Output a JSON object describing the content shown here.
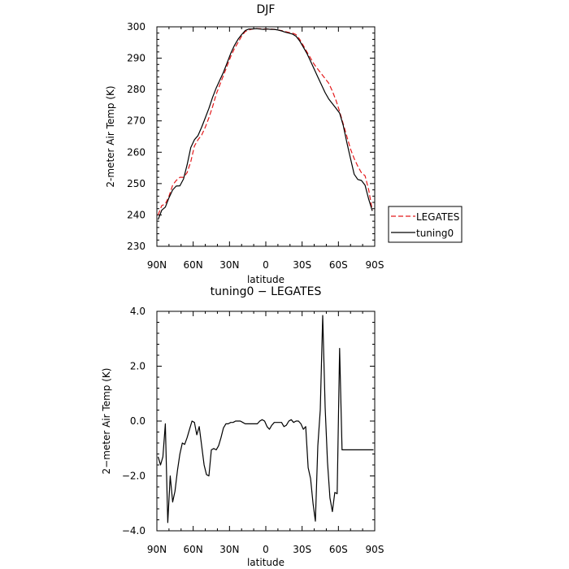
{
  "chart_data": [
    {
      "type": "line",
      "title": "DJF",
      "xlabel": "latitude",
      "ylabel": "2-meter Air Temp (K)",
      "xlim": [
        90,
        -90
      ],
      "ylim": [
        230,
        300
      ],
      "xticks": [
        90,
        60,
        30,
        0,
        -30,
        -60,
        -90
      ],
      "xticklabels": [
        "90N",
        "60N",
        "30N",
        "0",
        "30S",
        "60S",
        "90S"
      ],
      "yticks": [
        230,
        240,
        250,
        260,
        270,
        280,
        290,
        300
      ],
      "yticklabels": [
        "230",
        "240",
        "250",
        "260",
        "270",
        "280",
        "290",
        "300"
      ],
      "legend_position": "right",
      "series": [
        {
          "name": "LEGATES",
          "color": "#e41a1c",
          "dash": "dashed",
          "x": [
            89,
            86,
            83,
            80,
            77,
            74,
            71,
            68,
            65,
            62,
            59,
            56,
            53,
            50,
            47,
            44,
            41,
            38,
            35,
            32,
            29,
            26,
            23,
            20,
            17,
            14,
            11,
            8,
            5,
            2,
            -1,
            -4,
            -7,
            -10,
            -13,
            -16,
            -19,
            -22,
            -25,
            -28,
            -31,
            -34,
            -37,
            -40,
            -43,
            -46,
            -49,
            -52,
            -55,
            -58,
            -61,
            -64,
            -67,
            -70,
            -73,
            -76,
            -79,
            -82,
            -85,
            -88
          ],
          "y": [
            240,
            243,
            243.5,
            246,
            249.5,
            251,
            252,
            252,
            253.5,
            257,
            262,
            264,
            265.5,
            268,
            271,
            274.5,
            278.5,
            281.5,
            284.5,
            287.5,
            290.5,
            293,
            295,
            297,
            298.5,
            299,
            299.3,
            299.4,
            299.4,
            299.3,
            299.3,
            299.3,
            299.2,
            299,
            298.8,
            298.5,
            298.2,
            298,
            297.5,
            296,
            294,
            292,
            290,
            288,
            286.5,
            285,
            283.5,
            282,
            279.5,
            276.5,
            273,
            269,
            265,
            261,
            258,
            255.5,
            253.5,
            252.5,
            248,
            241.5
          ]
        },
        {
          "name": "tuning0",
          "color": "#000000",
          "dash": "solid",
          "x": [
            89,
            86,
            83,
            80,
            77,
            74,
            71,
            68,
            65,
            62,
            59,
            56,
            53,
            50,
            47,
            44,
            41,
            38,
            35,
            32,
            29,
            26,
            23,
            20,
            17,
            14,
            11,
            8,
            5,
            2,
            -1,
            -4,
            -7,
            -10,
            -13,
            -16,
            -19,
            -22,
            -25,
            -28,
            -31,
            -34,
            -37,
            -40,
            -43,
            -46,
            -49,
            -52,
            -55,
            -58,
            -61,
            -64,
            -67,
            -70,
            -73,
            -76,
            -79,
            -82,
            -85,
            -88
          ],
          "y": [
            238.5,
            241.5,
            242.5,
            245.5,
            248,
            249.2,
            249.3,
            251.5,
            256,
            261.5,
            264,
            265.3,
            268,
            271,
            274,
            277.5,
            280.5,
            283,
            285.5,
            288.5,
            291.5,
            294,
            296,
            297.5,
            298.8,
            299.3,
            299.3,
            299.4,
            299.3,
            299.2,
            299.3,
            299.2,
            299.2,
            299,
            298.7,
            298.3,
            298,
            297.7,
            297,
            295.5,
            293.5,
            291.5,
            289,
            286.5,
            284,
            281.5,
            279,
            277,
            275.5,
            274,
            272.5,
            268.5,
            263,
            258,
            253,
            251.3,
            251,
            249.5,
            245,
            241.3
          ]
        }
      ]
    },
    {
      "type": "line",
      "title": "tuning0 − LEGATES",
      "xlabel": "latitude",
      "ylabel": "2−meter Air Temp (K)",
      "xlim": [
        90,
        -90
      ],
      "ylim": [
        -4,
        4
      ],
      "xticks": [
        90,
        60,
        30,
        0,
        -30,
        -60,
        -90
      ],
      "xticklabels": [
        "90N",
        "60N",
        "30N",
        "0",
        "30S",
        "60S",
        "90S"
      ],
      "yticks": [
        -4,
        -2,
        0,
        2,
        4
      ],
      "yticklabels": [
        "−4.0",
        "−2.0",
        "0.0",
        "2.0",
        "4.0"
      ],
      "series": [
        {
          "name": "",
          "color": "#000000",
          "dash": "solid",
          "x": [
            89,
            87,
            85,
            83,
            81,
            79,
            77,
            75,
            73,
            71,
            69,
            67,
            65,
            63,
            61,
            59,
            57,
            55,
            53,
            51,
            49,
            47,
            45,
            43,
            41,
            39,
            37,
            35,
            33,
            31,
            29,
            27,
            25,
            23,
            21,
            19,
            17,
            15,
            13,
            11,
            9,
            7,
            5,
            3,
            1,
            -1,
            -3,
            -5,
            -7,
            -9,
            -11,
            -13,
            -15,
            -17,
            -19,
            -21,
            -23,
            -25,
            -27,
            -29,
            -31,
            -33,
            -35,
            -37,
            -39,
            -41,
            -43,
            -45,
            -47,
            -49,
            -51,
            -53,
            -55,
            -57,
            -59,
            -61,
            -63,
            -65,
            -67,
            -69,
            -71,
            -73,
            -75,
            -77,
            -79,
            -81,
            -83,
            -85,
            -87,
            -89
          ],
          "y": [
            -1.3,
            -1.6,
            -1.3,
            -0.1,
            -3.7,
            -2.0,
            -2.95,
            -2.55,
            -1.8,
            -1.2,
            -0.8,
            -0.85,
            -0.6,
            -0.3,
            0.0,
            -0.05,
            -0.5,
            -0.2,
            -0.9,
            -1.6,
            -1.95,
            -2.0,
            -1.05,
            -1.0,
            -1.05,
            -0.9,
            -0.6,
            -0.25,
            -0.1,
            -0.1,
            -0.05,
            -0.05,
            0.0,
            0.0,
            0.0,
            -0.05,
            -0.1,
            -0.1,
            -0.1,
            -0.1,
            -0.1,
            -0.1,
            0.0,
            0.05,
            0.0,
            -0.2,
            -0.3,
            -0.15,
            -0.05,
            -0.05,
            -0.05,
            -0.05,
            -0.2,
            -0.15,
            0.0,
            0.05,
            -0.05,
            0.0,
            0.0,
            -0.1,
            -0.3,
            -0.2,
            -1.7,
            -2.1,
            -3.0,
            -3.65,
            -0.9,
            0.4,
            3.85,
            0.5,
            -1.5,
            -2.8,
            -3.3,
            -2.6,
            -2.65,
            2.65,
            -1.05,
            -1.05,
            -1.05,
            -1.05,
            -1.05,
            -1.05,
            -1.05,
            -1.05,
            -1.05,
            -1.05,
            -1.05,
            -1.05,
            -1.05,
            -1.05
          ]
        }
      ]
    }
  ],
  "legend": {
    "items": [
      {
        "label": "LEGATES",
        "color": "#e41a1c",
        "dash": "dashed"
      },
      {
        "label": "tuning0",
        "color": "#000000",
        "dash": "solid"
      }
    ]
  }
}
